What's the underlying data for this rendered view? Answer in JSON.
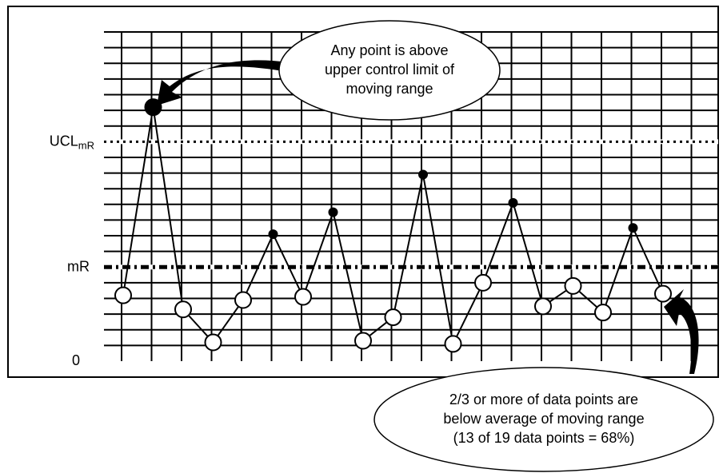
{
  "chart_data": {
    "type": "line",
    "values": [
      4.2,
      16.2,
      3.3,
      1.2,
      3.9,
      8.1,
      4.1,
      9.5,
      1.3,
      2.8,
      11.9,
      1.1,
      5.0,
      10.1,
      3.5,
      4.8,
      3.1,
      8.5,
      4.3
    ],
    "ylim": [
      0,
      21
    ],
    "yticks": [
      0,
      {
        "value": 6,
        "label": "mR"
      },
      {
        "value": 14,
        "label": "UCL",
        "subscript": "mR"
      }
    ],
    "minor_yticks": [
      1,
      2,
      3,
      4,
      5,
      6,
      7,
      8,
      9,
      10,
      11,
      12,
      13,
      14,
      15,
      16,
      17,
      18,
      19,
      20,
      21
    ],
    "grid": true,
    "color": "#000000",
    "annotations": [
      [
        "Any point is above",
        "upper control limit of",
        "moving range"
      ],
      [
        "2/3 or more of data points are",
        "below average of moving range",
        "(13 of 19 data points = 68%)"
      ]
    ]
  }
}
